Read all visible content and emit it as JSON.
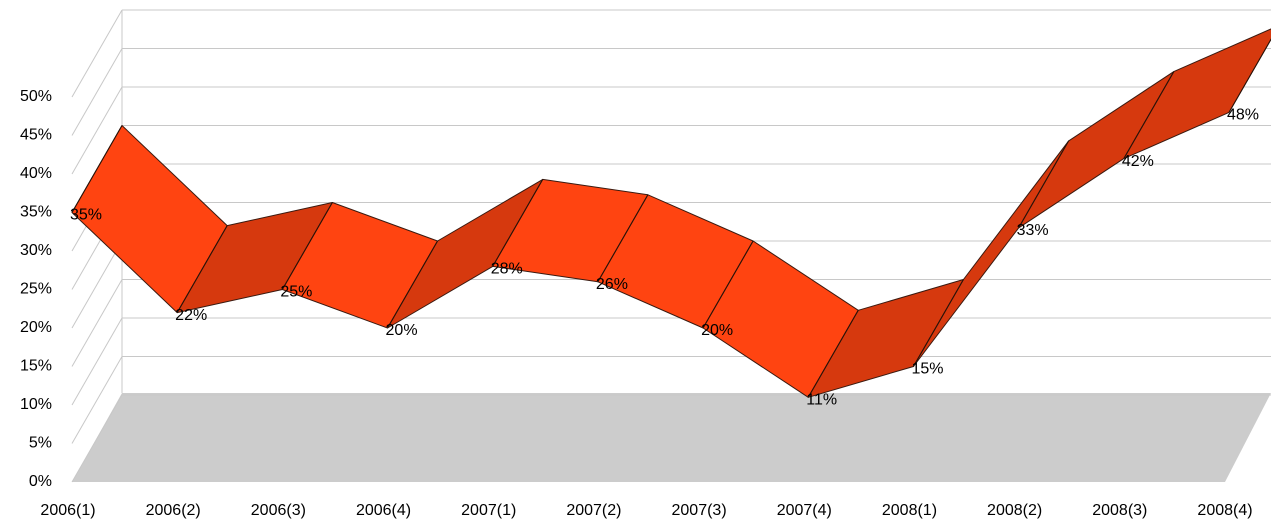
{
  "chart_data": {
    "type": "line3d",
    "categories": [
      "2006(1)",
      "2006(2)",
      "2006(3)",
      "2006(4)",
      "2007(1)",
      "2007(2)",
      "2007(3)",
      "2007(4)",
      "2008(1)",
      "2008(2)",
      "2008(3)",
      "2008(4)"
    ],
    "values": [
      35,
      22,
      25,
      20,
      28,
      26,
      20,
      11,
      15,
      33,
      42,
      48
    ],
    "value_labels": [
      "35%",
      "22%",
      "25%",
      "20%",
      "28%",
      "26%",
      "20%",
      "11%",
      "15%",
      "33%",
      "42%",
      "48%"
    ],
    "color": "#ff4411",
    "ylim": [
      0,
      50
    ],
    "yticks": [
      {
        "value": 0,
        "label": "0%"
      },
      {
        "value": 5,
        "label": "5%"
      },
      {
        "value": 10,
        "label": "10%"
      },
      {
        "value": 15,
        "label": "15%"
      },
      {
        "value": 20,
        "label": "20%"
      },
      {
        "value": 25,
        "label": "25%"
      },
      {
        "value": 30,
        "label": "30%"
      },
      {
        "value": 35,
        "label": "35%"
      },
      {
        "value": 40,
        "label": "40%"
      },
      {
        "value": 45,
        "label": "45%"
      },
      {
        "value": 50,
        "label": "50%"
      }
    ],
    "grid": true
  }
}
